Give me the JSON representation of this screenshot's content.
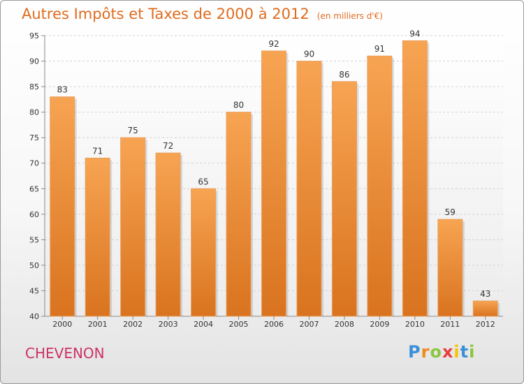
{
  "title": {
    "main": "Autres Impôts et Taxes de 2000 à 2012",
    "unit": "(en milliers d'€)"
  },
  "city": "CHEVENON",
  "logo": {
    "letters": [
      {
        "char": "P",
        "color": "#3a8fd8"
      },
      {
        "char": "r",
        "color": "#f08a1c"
      },
      {
        "char": "o",
        "color": "#8cc63f"
      },
      {
        "char": "x",
        "color": "#e83c3c"
      },
      {
        "char": "i",
        "color": "#f5c400"
      },
      {
        "char": "t",
        "color": "#3a8fd8"
      },
      {
        "char": "i",
        "color": "#8cc63f"
      }
    ]
  },
  "colors": {
    "bar_top": "#f7a452",
    "bar_bottom": "#d9731f",
    "title": "#e06b1e",
    "city": "#cc3366"
  },
  "chart_data": {
    "type": "bar",
    "title": "Autres Impôts et Taxes de 2000 à 2012",
    "subtitle": "(en milliers d'€)",
    "xlabel": "",
    "ylabel": "",
    "categories": [
      "2000",
      "2001",
      "2002",
      "2003",
      "2004",
      "2005",
      "2006",
      "2007",
      "2008",
      "2009",
      "2010",
      "2011",
      "2012"
    ],
    "values": [
      83,
      71,
      75,
      72,
      65,
      80,
      92,
      90,
      86,
      91,
      94,
      59,
      43
    ],
    "ylim": [
      40,
      95
    ],
    "yticks": [
      40,
      45,
      50,
      55,
      60,
      65,
      70,
      75,
      80,
      85,
      90,
      95
    ],
    "grid": true,
    "legend": "none"
  }
}
